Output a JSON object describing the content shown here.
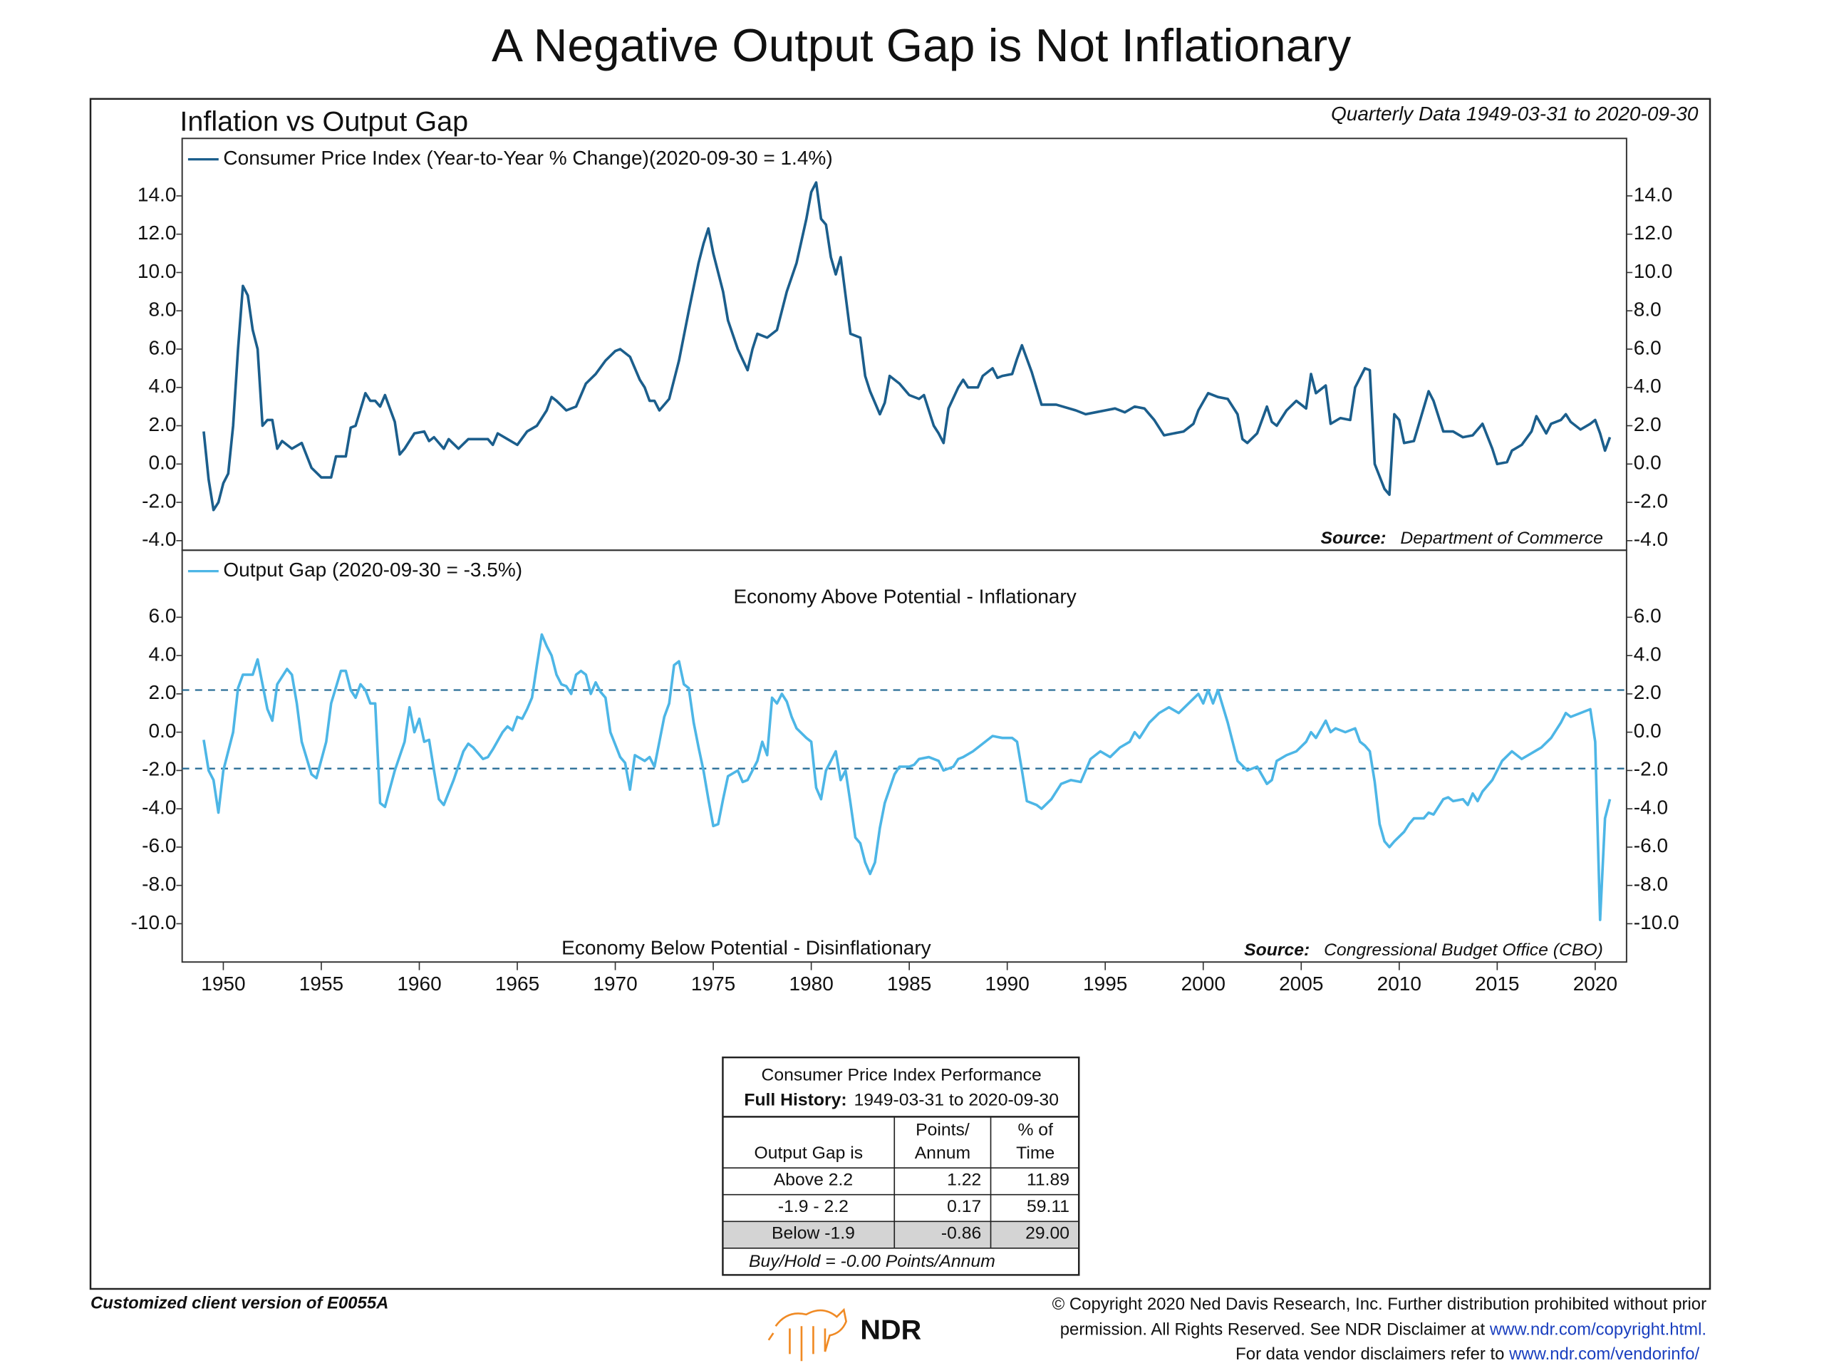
{
  "title": "A Negative Output Gap is Not Inflationary",
  "subtitle": "Inflation vs Output Gap",
  "data_note": "Quarterly Data 1949-03-31 to 2020-09-30",
  "chart_data": [
    {
      "type": "line",
      "xlim": [
        1947.9,
        2021.6
      ],
      "ylim": [
        -4.5,
        17
      ],
      "yticks": [
        {
          "value": -4,
          "label": "-4.0"
        },
        {
          "value": -2,
          "label": "-2.0"
        },
        {
          "value": 0,
          "label": "0.0"
        },
        {
          "value": 2,
          "label": "2.0"
        },
        {
          "value": 4,
          "label": "4.0"
        },
        {
          "value": 6,
          "label": "6.0"
        },
        {
          "value": 8,
          "label": "8.0"
        },
        {
          "value": 10,
          "label": "10.0"
        },
        {
          "value": 12,
          "label": "12.0"
        },
        {
          "value": 14,
          "label": "14.0"
        }
      ],
      "source_label": "Source:",
      "source": "Department of Commerce",
      "x": [
        1949.0,
        1949.25,
        1949.5,
        1949.75,
        1950.0,
        1950.25,
        1950.5,
        1950.75,
        1951.0,
        1951.25,
        1951.5,
        1951.75,
        1952.0,
        1952.25,
        1952.5,
        1952.75,
        1953.0,
        1953.5,
        1954.0,
        1954.5,
        1955.0,
        1955.5,
        1955.75,
        1956.25,
        1956.5,
        1956.75,
        1957.25,
        1957.5,
        1957.75,
        1958.0,
        1958.25,
        1958.75,
        1959.0,
        1959.25,
        1959.75,
        1960.25,
        1960.5,
        1960.75,
        1961.25,
        1961.5,
        1962.0,
        1962.5,
        1963.5,
        1963.75,
        1964.0,
        1964.5,
        1965.0,
        1965.5,
        1966.0,
        1966.5,
        1966.75,
        1967.0,
        1967.5,
        1968.0,
        1968.5,
        1969.0,
        1969.5,
        1970.0,
        1970.25,
        1970.75,
        1971.25,
        1971.5,
        1971.75,
        1972.0,
        1972.25,
        1972.75,
        1973.25,
        1973.75,
        1974.25,
        1974.5,
        1974.75,
        1975.0,
        1975.5,
        1975.75,
        1976.25,
        1976.75,
        1977.0,
        1977.25,
        1977.75,
        1978.25,
        1978.75,
        1979.25,
        1979.75,
        1980.0,
        1980.25,
        1980.5,
        1980.75,
        1981.0,
        1981.25,
        1981.5,
        1981.75,
        1982.0,
        1982.5,
        1982.75,
        1983.0,
        1983.5,
        1983.75,
        1984.0,
        1984.5,
        1985.0,
        1985.5,
        1985.75,
        1986.25,
        1986.5,
        1986.75,
        1987.0,
        1987.5,
        1987.75,
        1988.0,
        1988.5,
        1988.75,
        1989.25,
        1989.5,
        1989.75,
        1990.25,
        1990.5,
        1990.75,
        1991.0,
        1991.25,
        1991.75,
        1992.5,
        1993.5,
        1994.0,
        1994.5,
        1995.0,
        1995.5,
        1996.0,
        1996.5,
        1997.0,
        1997.5,
        1998.0,
        1998.5,
        1999.0,
        1999.5,
        1999.75,
        2000.25,
        2000.75,
        2001.25,
        2001.75,
        2002.0,
        2002.25,
        2002.75,
        2003.25,
        2003.5,
        2003.75,
        2004.25,
        2004.75,
        2005.25,
        2005.5,
        2005.75,
        2006.25,
        2006.5,
        2007.0,
        2007.5,
        2007.75,
        2008.25,
        2008.5,
        2008.75,
        2009.25,
        2009.5,
        2009.75,
        2010.0,
        2010.25,
        2010.75,
        2011.5,
        2011.75,
        2012.25,
        2012.75,
        2013.25,
        2013.75,
        2014.25,
        2014.75,
        2015.0,
        2015.5,
        2015.75,
        2016.25,
        2016.75,
        2017.0,
        2017.5,
        2017.75,
        2018.25,
        2018.5,
        2018.75,
        2019.25,
        2019.75,
        2020.0,
        2020.25,
        2020.5,
        2020.75
      ],
      "series": [
        {
          "name": "Consumer Price Index (Year-to-Year % Change)(2020-09-30 = 1.4%)",
          "color": "#1b5e8c",
          "values": [
            1.7,
            -0.8,
            -2.4,
            -2.0,
            -1.0,
            -0.5,
            2.0,
            6.0,
            9.3,
            8.8,
            7.0,
            6.0,
            2.0,
            2.3,
            2.3,
            0.8,
            1.2,
            0.8,
            1.1,
            -0.2,
            -0.7,
            -0.7,
            0.4,
            0.4,
            1.9,
            2.0,
            3.7,
            3.3,
            3.3,
            3.0,
            3.6,
            2.2,
            0.5,
            0.8,
            1.6,
            1.7,
            1.2,
            1.4,
            0.8,
            1.3,
            0.8,
            1.3,
            1.3,
            1.0,
            1.6,
            1.3,
            1.0,
            1.7,
            2.0,
            2.8,
            3.5,
            3.3,
            2.8,
            3.0,
            4.2,
            4.7,
            5.4,
            5.9,
            6.0,
            5.6,
            4.4,
            4.0,
            3.3,
            3.3,
            2.8,
            3.4,
            5.4,
            8.0,
            10.5,
            11.5,
            12.3,
            11.0,
            9.0,
            7.5,
            6.0,
            4.9,
            6.0,
            6.8,
            6.6,
            7.0,
            9.0,
            10.5,
            12.8,
            14.2,
            14.7,
            12.8,
            12.5,
            10.8,
            9.9,
            10.8,
            8.8,
            6.8,
            6.6,
            4.6,
            3.8,
            2.6,
            3.2,
            4.6,
            4.2,
            3.6,
            3.4,
            3.6,
            2.0,
            1.6,
            1.1,
            2.9,
            4.0,
            4.4,
            4.0,
            4.0,
            4.6,
            5.0,
            4.5,
            4.6,
            4.7,
            5.5,
            6.2,
            5.5,
            4.8,
            3.1,
            3.1,
            2.8,
            2.6,
            2.7,
            2.8,
            2.9,
            2.7,
            3.0,
            2.9,
            2.3,
            1.5,
            1.6,
            1.7,
            2.1,
            2.8,
            3.7,
            3.5,
            3.4,
            2.6,
            1.3,
            1.1,
            1.6,
            3.0,
            2.2,
            2.0,
            2.8,
            3.3,
            2.9,
            4.7,
            3.7,
            4.1,
            2.1,
            2.4,
            2.3,
            4.0,
            5.0,
            4.9,
            0.0,
            -1.3,
            -1.6,
            2.6,
            2.3,
            1.1,
            1.2,
            3.8,
            3.3,
            1.7,
            1.7,
            1.4,
            1.5,
            2.1,
            0.8,
            0.0,
            0.1,
            0.7,
            1.0,
            1.7,
            2.5,
            1.6,
            2.1,
            2.3,
            2.6,
            2.2,
            1.8,
            2.1,
            2.3,
            1.6,
            0.7,
            1.4
          ]
        }
      ]
    },
    {
      "type": "line",
      "xlim": [
        1947.9,
        2021.6
      ],
      "ylim": [
        -12,
        9.5
      ],
      "yticks": [
        {
          "value": -10,
          "label": "-10.0"
        },
        {
          "value": -8,
          "label": "-8.0"
        },
        {
          "value": -6,
          "label": "-6.0"
        },
        {
          "value": -4,
          "label": "-4.0"
        },
        {
          "value": -2,
          "label": "-2.0"
        },
        {
          "value": 0,
          "label": "0.0"
        },
        {
          "value": 2,
          "label": "2.0"
        },
        {
          "value": 4,
          "label": "4.0"
        },
        {
          "value": 6,
          "label": "6.0"
        }
      ],
      "xticks": [
        1950,
        1955,
        1960,
        1965,
        1970,
        1975,
        1980,
        1985,
        1990,
        1995,
        2000,
        2005,
        2010,
        2015,
        2020
      ],
      "thresholds": [
        2.2,
        -1.9
      ],
      "threshold_color": "#2b6f98",
      "annotations": [
        "Economy Above Potential - Inflationary",
        "Economy Below Potential - Disinflationary"
      ],
      "source_label": "Source:",
      "source": "Congressional Budget Office (CBO)",
      "x": [
        1949.0,
        1949.25,
        1949.5,
        1949.75,
        1950.0,
        1950.5,
        1950.75,
        1951.0,
        1951.5,
        1951.75,
        1952.0,
        1952.25,
        1952.5,
        1952.75,
        1953.25,
        1953.5,
        1953.75,
        1954.0,
        1954.5,
        1954.75,
        1955.25,
        1955.5,
        1956.0,
        1956.25,
        1956.5,
        1956.75,
        1957.0,
        1957.25,
        1957.5,
        1957.75,
        1958.0,
        1958.25,
        1958.75,
        1959.25,
        1959.5,
        1959.75,
        1960.0,
        1960.25,
        1960.5,
        1960.75,
        1961.0,
        1961.25,
        1961.75,
        1962.25,
        1962.5,
        1962.75,
        1963.25,
        1963.5,
        1963.75,
        1964.25,
        1964.5,
        1964.75,
        1965.0,
        1965.25,
        1965.5,
        1965.75,
        1966.0,
        1966.25,
        1966.5,
        1966.75,
        1967.0,
        1967.25,
        1967.5,
        1967.75,
        1968.0,
        1968.25,
        1968.5,
        1968.75,
        1969.0,
        1969.25,
        1969.5,
        1969.75,
        1970.25,
        1970.5,
        1970.75,
        1971.0,
        1971.5,
        1971.75,
        1972.0,
        1972.25,
        1972.5,
        1972.75,
        1973.0,
        1973.25,
        1973.5,
        1973.75,
        1974.0,
        1974.25,
        1974.5,
        1974.75,
        1975.0,
        1975.25,
        1975.5,
        1975.75,
        1976.25,
        1976.5,
        1976.75,
        1977.25,
        1977.5,
        1977.75,
        1978.0,
        1978.25,
        1978.5,
        1978.75,
        1979.0,
        1979.25,
        1979.75,
        1980.0,
        1980.25,
        1980.5,
        1980.75,
        1981.25,
        1981.5,
        1981.75,
        1982.0,
        1982.25,
        1982.5,
        1982.75,
        1983.0,
        1983.25,
        1983.5,
        1983.75,
        1984.25,
        1984.5,
        1985.0,
        1985.25,
        1985.5,
        1986.0,
        1986.5,
        1986.75,
        1987.25,
        1987.5,
        1987.75,
        1988.25,
        1988.75,
        1989.25,
        1989.75,
        1990.25,
        1990.5,
        1990.75,
        1991.0,
        1991.5,
        1991.75,
        1992.25,
        1992.75,
        1993.25,
        1993.75,
        1994.25,
        1994.75,
        1995.25,
        1995.75,
        1996.25,
        1996.5,
        1996.75,
        1997.25,
        1997.75,
        1998.25,
        1998.75,
        1999.25,
        1999.75,
        2000.0,
        2000.25,
        2000.5,
        2000.75,
        2001.25,
        2001.75,
        2002.25,
        2002.75,
        2003.25,
        2003.5,
        2003.75,
        2004.25,
        2004.75,
        2005.25,
        2005.5,
        2005.75,
        2006.25,
        2006.5,
        2006.75,
        2007.25,
        2007.75,
        2008.0,
        2008.25,
        2008.5,
        2008.75,
        2009.0,
        2009.25,
        2009.5,
        2009.75,
        2010.25,
        2010.5,
        2010.75,
        2011.25,
        2011.5,
        2011.75,
        2012.25,
        2012.5,
        2012.75,
        2013.25,
        2013.5,
        2013.75,
        2014.0,
        2014.25,
        2014.75,
        2015.25,
        2015.75,
        2016.25,
        2016.75,
        2017.25,
        2017.75,
        2018.25,
        2018.5,
        2018.75,
        2019.25,
        2019.75,
        2020.0,
        2020.25,
        2020.5,
        2020.75
      ],
      "series": [
        {
          "name": "Output Gap (2020-09-30 = -3.5%)",
          "color": "#4db6e6",
          "values": [
            -0.4,
            -2.0,
            -2.5,
            -4.2,
            -2.0,
            0.0,
            2.3,
            3.0,
            3.0,
            3.8,
            2.5,
            1.2,
            0.6,
            2.5,
            3.3,
            3.0,
            1.5,
            -0.5,
            -2.2,
            -2.4,
            -0.5,
            1.5,
            3.2,
            3.2,
            2.2,
            1.8,
            2.5,
            2.2,
            1.5,
            1.5,
            -3.7,
            -3.9,
            -2.0,
            -0.5,
            1.3,
            0.0,
            0.7,
            -0.5,
            -0.4,
            -2.0,
            -3.5,
            -3.8,
            -2.5,
            -1.0,
            -0.6,
            -0.8,
            -1.4,
            -1.3,
            -0.9,
            0.0,
            0.3,
            0.1,
            0.8,
            0.7,
            1.2,
            1.8,
            3.5,
            5.1,
            4.5,
            4.0,
            3.0,
            2.5,
            2.4,
            2.0,
            3.0,
            3.2,
            3.0,
            2.0,
            2.6,
            2.1,
            1.8,
            0.0,
            -1.3,
            -1.6,
            -3.0,
            -1.2,
            -1.5,
            -1.3,
            -1.8,
            -0.5,
            0.8,
            1.5,
            3.5,
            3.7,
            2.5,
            2.3,
            0.5,
            -0.8,
            -2.0,
            -3.5,
            -4.9,
            -4.8,
            -3.5,
            -2.3,
            -2.0,
            -2.6,
            -2.5,
            -1.5,
            -0.5,
            -1.2,
            1.8,
            1.5,
            2.0,
            1.6,
            0.8,
            0.2,
            -0.3,
            -0.5,
            -2.9,
            -3.5,
            -2.0,
            -1.0,
            -2.5,
            -2.0,
            -3.7,
            -5.5,
            -5.8,
            -6.8,
            -7.4,
            -6.8,
            -5.0,
            -3.7,
            -2.2,
            -1.8,
            -1.8,
            -1.7,
            -1.4,
            -1.3,
            -1.5,
            -2.0,
            -1.8,
            -1.4,
            -1.3,
            -1.0,
            -0.6,
            -0.2,
            -0.3,
            -0.3,
            -0.5,
            -2.0,
            -3.6,
            -3.8,
            -4.0,
            -3.5,
            -2.7,
            -2.5,
            -2.6,
            -1.4,
            -1.0,
            -1.3,
            -0.8,
            -0.5,
            0.0,
            -0.3,
            0.5,
            1.0,
            1.3,
            1.0,
            1.5,
            2.0,
            1.5,
            2.2,
            1.5,
            2.2,
            0.5,
            -1.5,
            -2.0,
            -1.8,
            -2.7,
            -2.5,
            -1.5,
            -1.2,
            -1.0,
            -0.5,
            0.0,
            -0.3,
            0.6,
            0.0,
            0.2,
            0.0,
            0.2,
            -0.5,
            -0.7,
            -1.0,
            -2.6,
            -4.8,
            -5.7,
            -6.0,
            -5.7,
            -5.2,
            -4.8,
            -4.5,
            -4.5,
            -4.2,
            -4.3,
            -3.5,
            -3.4,
            -3.6,
            -3.5,
            -3.8,
            -3.2,
            -3.6,
            -3.1,
            -2.5,
            -1.5,
            -1.0,
            -1.4,
            -1.1,
            -0.8,
            -0.3,
            0.5,
            1.0,
            0.8,
            1.0,
            1.2,
            -0.5,
            -9.8,
            -4.5,
            -3.5
          ]
        }
      ]
    }
  ],
  "table": {
    "title": "Consumer Price Index Performance",
    "history_label": "Full History:",
    "history": "1949-03-31 to 2020-09-30",
    "columns": [
      [
        "Output Gap is"
      ],
      [
        "Points/",
        "Annum"
      ],
      [
        "% of",
        "Time"
      ]
    ],
    "rows": [
      [
        "Above 2.2",
        "1.22",
        "11.89"
      ],
      [
        "-1.9 - 2.2",
        "0.17",
        "59.11"
      ],
      [
        "Below -1.9",
        "-0.86",
        "29.00"
      ]
    ],
    "note": "Buy/Hold = -0.00 Points/Annum"
  },
  "footer": {
    "client_note": "Customized client version of E0055A",
    "logo": "NDR",
    "copyright": [
      "© Copyright 2020 Ned Davis Research, Inc. Further distribution prohibited without prior",
      "permission. All Rights Reserved. See NDR Disclaimer at "
    ],
    "copyright_link": "www.ndr.com/copyright.html.",
    "vendor_text": "For data vendor disclaimers refer to ",
    "vendor_link": "www.ndr.com/vendorinfo/"
  }
}
